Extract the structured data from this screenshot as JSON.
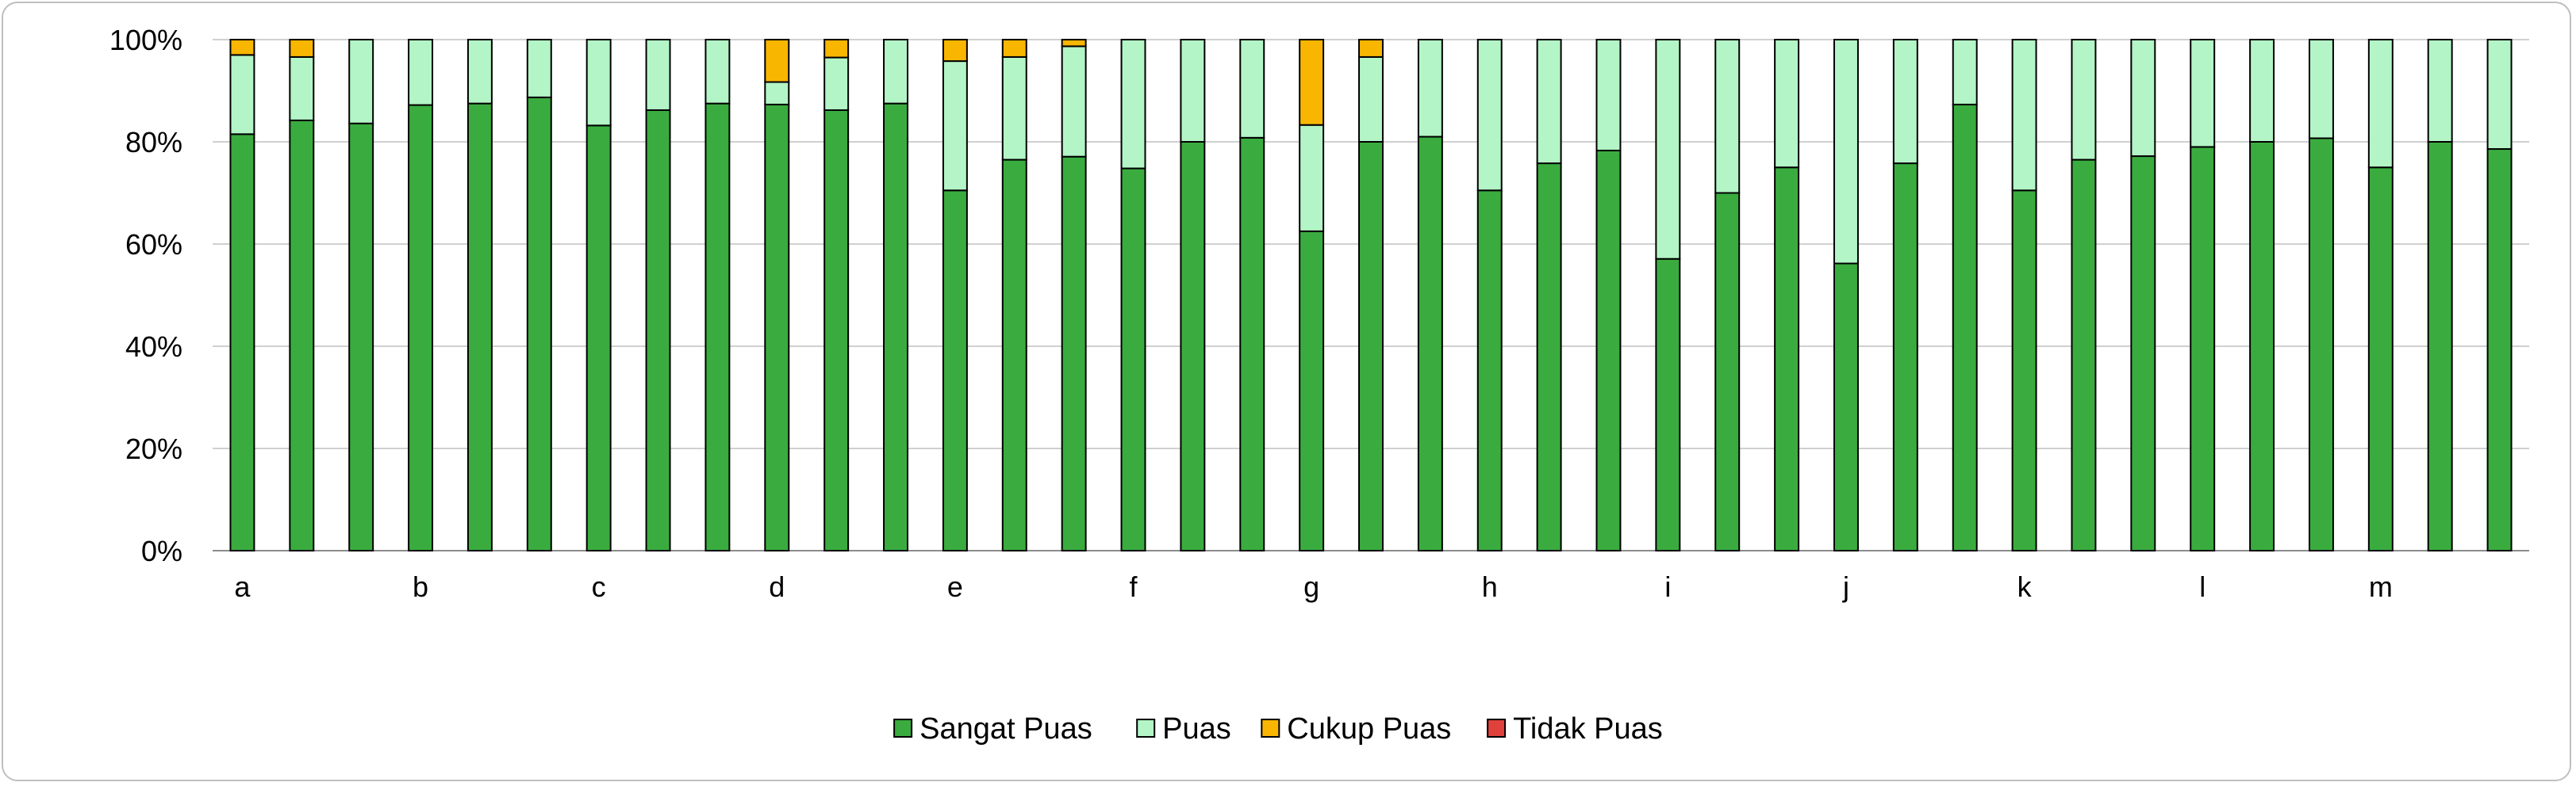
{
  "chart_data": {
    "type": "bar",
    "stacked": true,
    "stack_mode": "percent",
    "title": "",
    "xlabel": "",
    "ylabel": "",
    "ylim": [
      0,
      100
    ],
    "y_ticks": [
      "0%",
      "20%",
      "40%",
      "60%",
      "80%",
      "100%"
    ],
    "grid": "horizontal",
    "legend_position": "bottom",
    "category_labels": [
      "a",
      "b",
      "c",
      "d",
      "e",
      "f",
      "g",
      "h",
      "i",
      "j",
      "k",
      "l",
      "m"
    ],
    "bars_per_category": 3,
    "series": [
      {
        "name": "Sangat Puas",
        "color": "#3aac3f",
        "values": [
          81.5,
          84.2,
          83.6,
          87.2,
          87.5,
          88.7,
          83.2,
          86.2,
          87.5,
          87.3,
          86.2,
          87.5,
          70.5,
          76.5,
          77.1,
          74.8,
          80.0,
          80.8,
          62.5,
          80.0,
          81.0,
          70.5,
          75.8,
          78.3,
          57.1,
          70.0,
          75.0,
          56.2,
          75.8,
          87.3,
          70.5,
          76.5,
          77.2,
          79.0,
          80.0,
          80.7,
          75.0,
          80.0,
          78.6
        ]
      },
      {
        "name": "Puas",
        "color": "#b3f5c6",
        "values": [
          15.5,
          12.4,
          16.4,
          12.8,
          12.5,
          11.3,
          16.8,
          13.8,
          12.5,
          4.4,
          10.3,
          12.5,
          25.3,
          20.1,
          21.6,
          25.2,
          20.0,
          19.2,
          20.8,
          16.6,
          19.0,
          29.5,
          24.2,
          21.7,
          42.9,
          30.0,
          25.0,
          43.8,
          24.2,
          12.7,
          29.5,
          23.5,
          22.8,
          21.0,
          20.0,
          19.3,
          25.0,
          20.0,
          21.4
        ]
      },
      {
        "name": "Cukup Puas",
        "color": "#f9b600",
        "values": [
          3.0,
          3.4,
          0,
          0,
          0,
          0,
          0,
          0,
          0,
          8.3,
          3.5,
          0,
          4.2,
          3.4,
          1.3,
          0,
          0,
          0,
          16.7,
          3.4,
          0,
          0,
          0,
          0,
          0,
          0,
          0,
          0,
          0,
          0,
          0,
          0,
          0,
          0,
          0,
          0,
          0,
          0,
          0
        ]
      },
      {
        "name": "Tidak Puas",
        "color": "#e0413a",
        "values": [
          0,
          0,
          0,
          0,
          0,
          0,
          0,
          0,
          0,
          0,
          0,
          0,
          0,
          0,
          0,
          0,
          0,
          0,
          0,
          0,
          0,
          0,
          0,
          0,
          0,
          0,
          0,
          0,
          0,
          0,
          0,
          0,
          0,
          0,
          0,
          0,
          0,
          0,
          0
        ]
      }
    ]
  }
}
